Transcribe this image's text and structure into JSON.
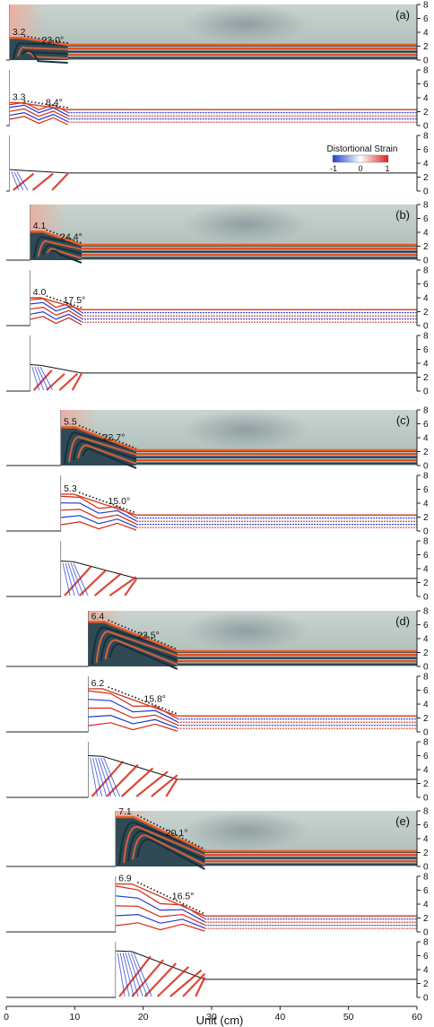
{
  "figure": {
    "x_axis_label": "Unit (cm)",
    "x_ticks": [
      "0",
      "10",
      "20",
      "30",
      "40",
      "50",
      "60"
    ],
    "y_ticks": [
      "0",
      "2",
      "4",
      "6",
      "8"
    ],
    "legend": {
      "title": "Distortional Strain",
      "ticks": [
        "-1",
        "0",
        "1"
      ],
      "colors": [
        "#1f3fd8",
        "#ffffff",
        "#e02020"
      ],
      "placement": "top-right of panel (a) strain plot"
    },
    "colors": {
      "strain_red": "#d82818",
      "strain_blue": "#2038d0",
      "model_photo_layer_dark": "#1f3a4a",
      "model_photo_layer_red": "#e04a20",
      "sand_background": "#b9c9c6"
    },
    "stages": [
      {
        "label": "(a)",
        "wall_x": 0.5,
        "photo": {
          "height": "3.2",
          "angle": "23.0°"
        },
        "numerical": {
          "height": "3.3",
          "angle": "8.4°"
        }
      },
      {
        "label": "(b)",
        "wall_x": 3.5,
        "photo": {
          "height": "4.1",
          "angle": "24.4°"
        },
        "numerical": {
          "height": "4.0",
          "angle": "17.5°"
        }
      },
      {
        "label": "(c)",
        "wall_x": 8.0,
        "photo": {
          "height": "5.5",
          "angle": "22.7°"
        },
        "numerical": {
          "height": "5.3",
          "angle": "15.0°"
        }
      },
      {
        "label": "(d)",
        "wall_x": 12.0,
        "photo": {
          "height": "6.4",
          "angle": "23.5°"
        },
        "numerical": {
          "height": "6.2",
          "angle": "15.8°"
        }
      },
      {
        "label": "(e)",
        "wall_x": 16.0,
        "photo": {
          "height": "7.1",
          "angle": "20.1°"
        },
        "numerical": {
          "height": "6.9",
          "angle": "16.5°"
        }
      }
    ]
  },
  "chart_data": {
    "type": "area",
    "title": "",
    "xlabel": "Unit (cm)",
    "ylabel": "",
    "xlim": [
      0,
      60
    ],
    "ylim": [
      0,
      8
    ],
    "panels_per_stage": [
      "photo",
      "numerical",
      "distortional_strain"
    ],
    "series": [
      {
        "stage": "(a)",
        "wedge_top_photo": 3.2,
        "taper_photo_deg": 23.0,
        "wedge_top_numerical": 3.3,
        "taper_numerical_deg": 8.4,
        "wedge_toe_x": 9
      },
      {
        "stage": "(b)",
        "wedge_top_photo": 4.1,
        "taper_photo_deg": 24.4,
        "wedge_top_numerical": 4.0,
        "taper_numerical_deg": 17.5,
        "wedge_toe_x": 11
      },
      {
        "stage": "(c)",
        "wedge_top_photo": 5.5,
        "taper_photo_deg": 22.7,
        "wedge_top_numerical": 5.3,
        "taper_numerical_deg": 15.0,
        "wedge_toe_x": 19
      },
      {
        "stage": "(d)",
        "wedge_top_photo": 6.4,
        "taper_photo_deg": 23.5,
        "wedge_top_numerical": 6.2,
        "taper_numerical_deg": 15.8,
        "wedge_toe_x": 25
      },
      {
        "stage": "(e)",
        "wedge_top_photo": 7.1,
        "taper_photo_deg": 20.1,
        "wedge_top_numerical": 6.9,
        "taper_numerical_deg": 16.5,
        "wedge_toe_x": 29
      }
    ],
    "grid": false,
    "legend": "top-right"
  }
}
